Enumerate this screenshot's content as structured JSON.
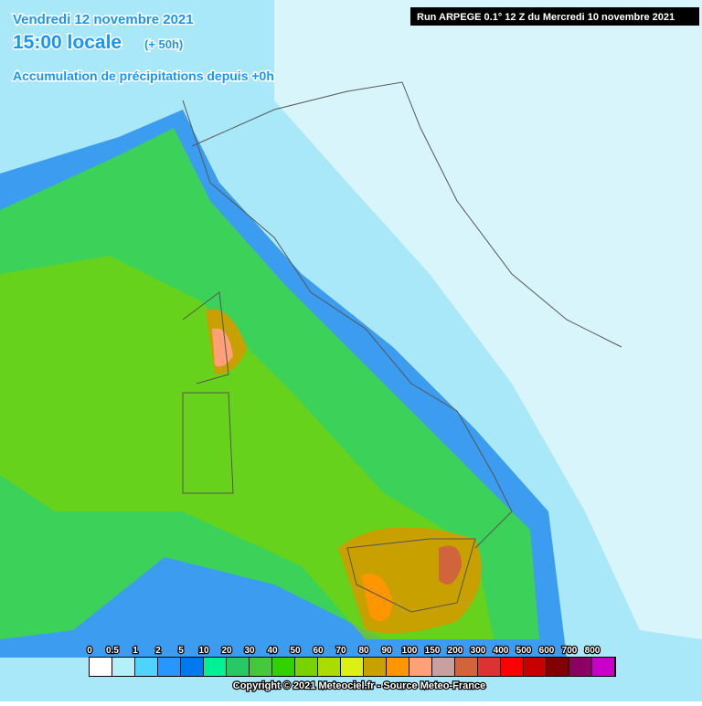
{
  "header": {
    "date": "Vendredi 12 novembre 2021",
    "time": "15:00 locale",
    "lead": "(+ 50h)",
    "field": "Accumulation de précipitations depuis +0h",
    "run": "Run ARPEGE 0.1° 12 Z du Mercredi 10 novembre 2021"
  },
  "legend": {
    "items": [
      {
        "label": "0",
        "color": "#ffffff"
      },
      {
        "label": "0.5",
        "color": "#b4f0fa"
      },
      {
        "label": "1",
        "color": "#50d2ff"
      },
      {
        "label": "2",
        "color": "#2896ff"
      },
      {
        "label": "5",
        "color": "#0078f0"
      },
      {
        "label": "10",
        "color": "#00f096"
      },
      {
        "label": "20",
        "color": "#28c864"
      },
      {
        "label": "30",
        "color": "#46c83c"
      },
      {
        "label": "40",
        "color": "#32d200"
      },
      {
        "label": "50",
        "color": "#78d200"
      },
      {
        "label": "60",
        "color": "#aadc00"
      },
      {
        "label": "70",
        "color": "#dcf014"
      },
      {
        "label": "80",
        "color": "#c8a000"
      },
      {
        "label": "90",
        "color": "#ff9600"
      },
      {
        "label": "100",
        "color": "#ffa078"
      },
      {
        "label": "150",
        "color": "#c8a0a0"
      },
      {
        "label": "200",
        "color": "#d2643c"
      },
      {
        "label": "300",
        "color": "#dc3232"
      },
      {
        "label": "400",
        "color": "#ff0000"
      },
      {
        "label": "500",
        "color": "#c80000"
      },
      {
        "label": "600",
        "color": "#820000"
      },
      {
        "label": "700",
        "color": "#8c0064"
      },
      {
        "label": "800",
        "color": "#c800c8"
      }
    ]
  },
  "footer": {
    "copyright": "Copyright © 2021 Meteociel.fr - Source Meteo-France"
  }
}
